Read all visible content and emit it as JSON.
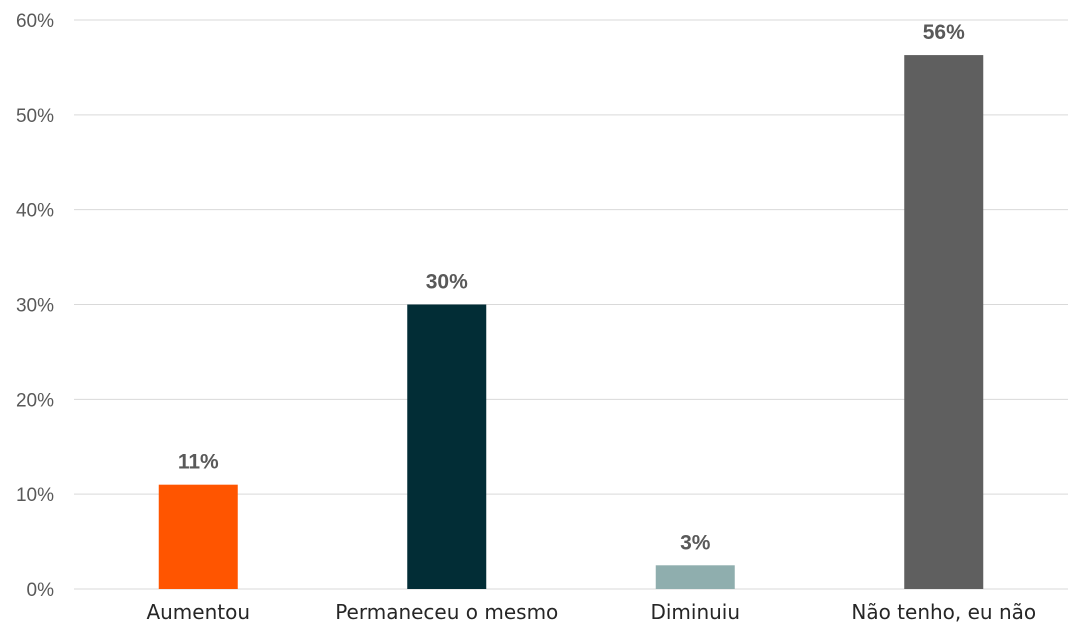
{
  "chart_data": {
    "type": "bar",
    "categories": [
      "Aumentou",
      "Permaneceu o mesmo",
      "Diminuiu",
      "Não tenho, eu não"
    ],
    "values": [
      11,
      30,
      3,
      56
    ],
    "exact_values": [
      11,
      30,
      2.5,
      56.3
    ],
    "data_labels": [
      "11%",
      "30%",
      "3%",
      "56%"
    ],
    "colors": [
      "#ff5500",
      "#022d36",
      "#8faeae",
      "#5f5f5f"
    ],
    "ylim": [
      0,
      60
    ],
    "yticks": [
      0,
      10,
      20,
      30,
      40,
      50,
      60
    ],
    "ytick_labels": [
      "0%",
      "10%",
      "20%",
      "30%",
      "40%",
      "50%",
      "60%"
    ],
    "grid": true,
    "legend": false,
    "title": "",
    "xlabel": "",
    "ylabel": ""
  }
}
